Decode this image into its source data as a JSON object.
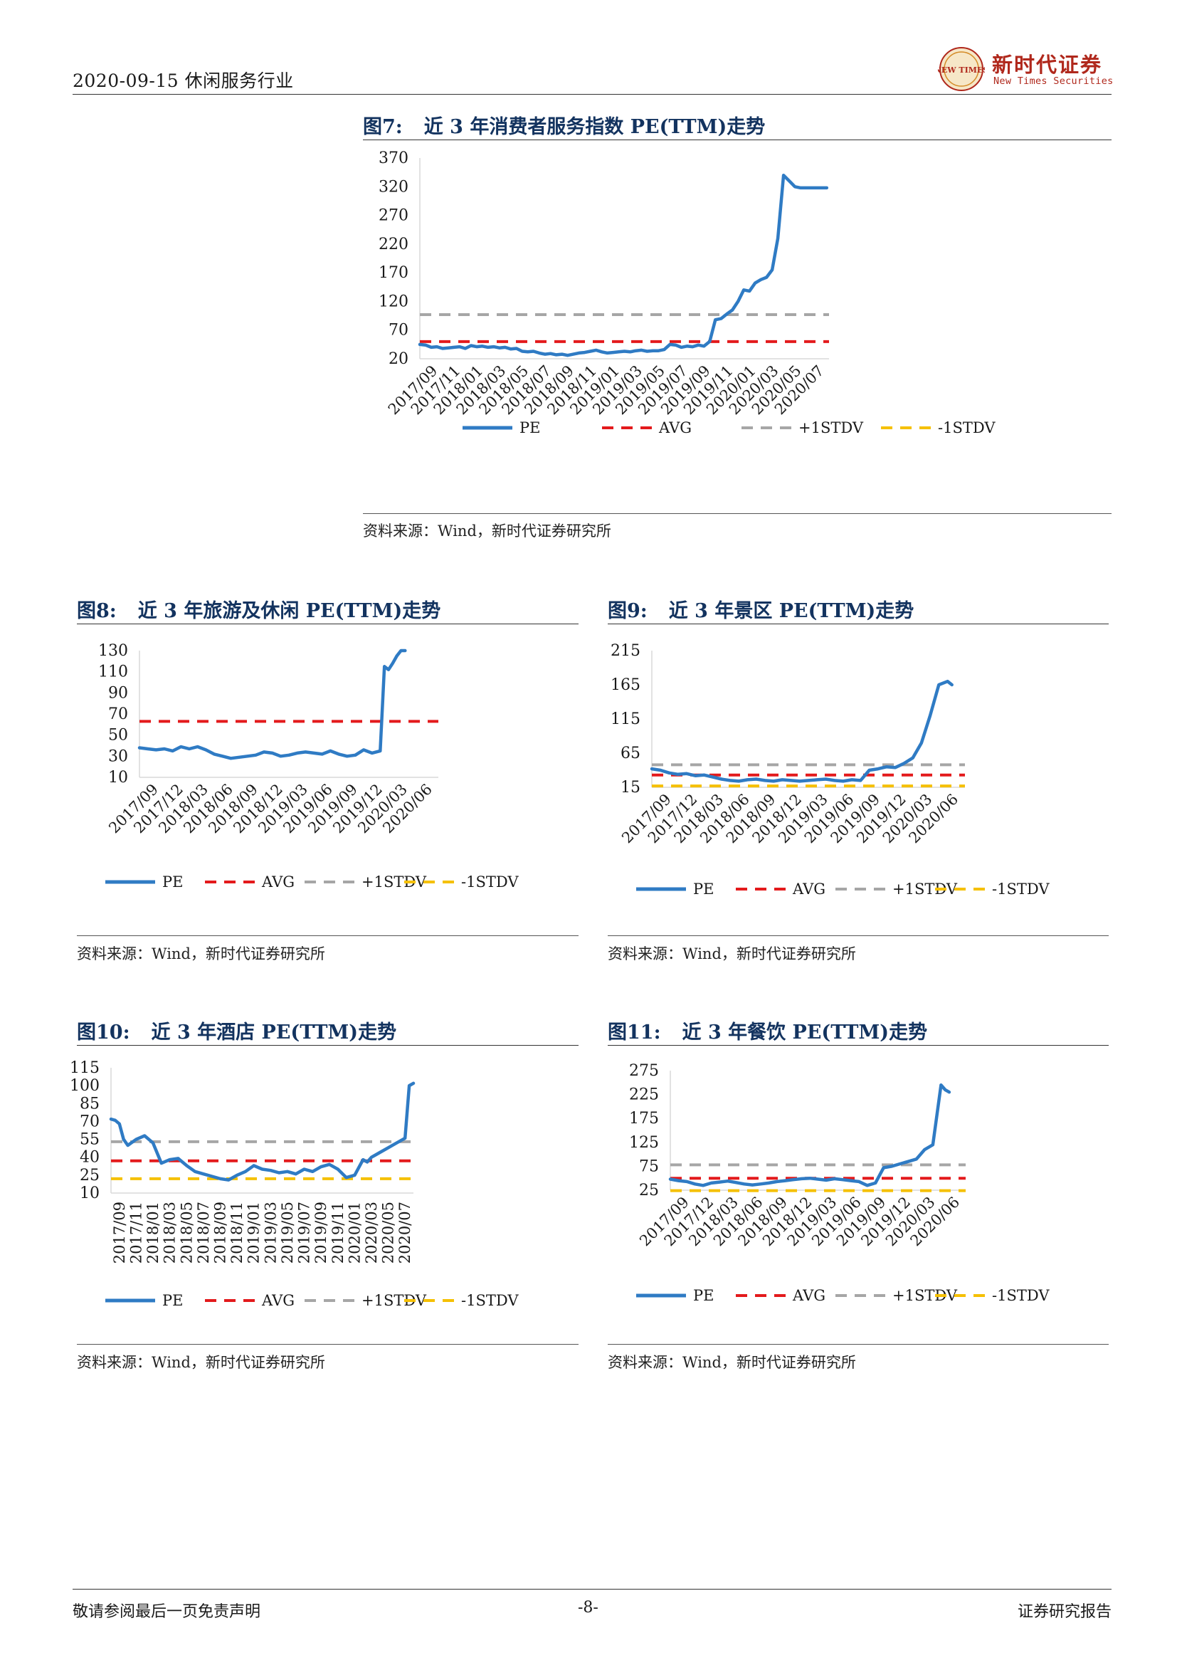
{
  "header": {
    "date_industry": "2020-09-15 休闲服务行业",
    "logo_cn": "新时代证券",
    "logo_en": "New Times Securities",
    "logo_seal_text": "NEW TIMES"
  },
  "footer": {
    "left": "敬请参阅最后一页免责声明",
    "page": "-8-",
    "right": "证券研究报告"
  },
  "colors": {
    "pe": "#2f7bc4",
    "avg": "#e31a1c",
    "plus1": "#a6a6a6",
    "minus1": "#f5c000",
    "title": "#13335f",
    "logo": "#b0281c"
  },
  "legend_labels": [
    "PE",
    "AVG",
    "+1STDV",
    "-1STDV"
  ],
  "figures": [
    {
      "num": "图7:",
      "title": "近 3 年消费者服务指数 PE(TTM)走势",
      "source": "资料来源：Wind，新时代证券研究所"
    },
    {
      "num": "图8:",
      "title": "近 3 年旅游及休闲 PE(TTM)走势",
      "source": "资料来源：Wind，新时代证券研究所"
    },
    {
      "num": "图9:",
      "title": "近 3 年景区 PE(TTM)走势",
      "source": "资料来源：Wind，新时代证券研究所"
    },
    {
      "num": "图10:",
      "title": "近 3 年酒店 PE(TTM)走势",
      "source": "资料来源：Wind，新时代证券研究所"
    },
    {
      "num": "图11:",
      "title": "近 3 年餐饮 PE(TTM)走势",
      "source": "资料来源：Wind，新时代证券研究所"
    }
  ],
  "chart_data": [
    {
      "type": "line",
      "title": "近 3 年消费者服务指数 PE(TTM)走势",
      "ylim": [
        20,
        370
      ],
      "yticks": [
        370,
        320,
        270,
        220,
        170,
        120,
        70,
        20
      ],
      "xticks": [
        "2017/09",
        "2017/11",
        "2018/01",
        "2018/03",
        "2018/05",
        "2018/07",
        "2018/09",
        "2018/11",
        "2019/01",
        "2019/03",
        "2019/05",
        "2019/07",
        "2019/09",
        "2019/11",
        "2020/01",
        "2020/03",
        "2020/05",
        "2020/07"
      ],
      "x_range": [
        0,
        36
      ],
      "lines": {
        "avg": 50,
        "plus1": 97,
        "minus1": null
      },
      "legend": [
        "PE",
        "AVG",
        "+1STDV",
        "-1STDV"
      ],
      "series": [
        {
          "name": "PE",
          "x": [
            0,
            0.5,
            1,
            1.5,
            2,
            2.5,
            3,
            3.5,
            4,
            4.5,
            5,
            5.5,
            6,
            6.5,
            7,
            7.5,
            8,
            8.5,
            9,
            9.5,
            10,
            10.5,
            11,
            11.5,
            12,
            12.5,
            13,
            13.5,
            14,
            14.5,
            15,
            15.5,
            16,
            16.5,
            17,
            17.5,
            18,
            18.5,
            19,
            19.5,
            20,
            20.5,
            21,
            21.5,
            22,
            22.5,
            23,
            23.5,
            24,
            24.5,
            25,
            25.5,
            26,
            26.5,
            27,
            27.5,
            28,
            28.5,
            29,
            29.5,
            30,
            30.5,
            31,
            31.5,
            32,
            32.5,
            33,
            33.5,
            34,
            34.5,
            35,
            35.3,
            35.5,
            35.8
          ],
          "values": [
            45,
            44,
            40,
            41,
            38,
            39,
            40,
            41,
            38,
            43,
            41,
            42,
            40,
            41,
            39,
            40,
            37,
            38,
            33,
            32,
            33,
            30,
            28,
            29,
            27,
            28,
            26,
            28,
            30,
            31,
            33,
            35,
            32,
            30,
            31,
            32,
            33,
            32,
            34,
            35,
            33,
            34,
            34,
            36,
            45,
            44,
            40,
            42,
            41,
            44,
            42,
            50,
            88,
            90,
            98,
            105,
            120,
            140,
            138,
            152,
            158,
            162,
            175,
            230,
            340,
            330,
            320,
            318,
            318,
            318,
            318,
            318,
            318,
            318
          ]
        }
      ]
    },
    {
      "type": "line",
      "title": "近 3 年旅游及休闲 PE(TTM)走势",
      "ylim": [
        10,
        130
      ],
      "yticks": [
        130,
        110,
        90,
        70,
        50,
        30,
        10
      ],
      "xticks": [
        "2017/09",
        "2017/12",
        "2018/03",
        "2018/06",
        "2018/09",
        "2018/12",
        "2019/03",
        "2019/06",
        "2019/09",
        "2019/12",
        "2020/03",
        "2020/06"
      ],
      "x_range": [
        0,
        36
      ],
      "lines": {
        "avg": 63,
        "plus1": null,
        "minus1": null
      },
      "legend": [
        "PE",
        "AVG",
        "+1STDV",
        "-1STDV"
      ],
      "series": [
        {
          "name": "PE",
          "x": [
            0,
            1,
            2,
            3,
            4,
            5,
            6,
            7,
            8,
            9,
            10,
            11,
            12,
            13,
            14,
            15,
            16,
            17,
            18,
            19,
            20,
            21,
            22,
            23,
            24,
            25,
            26,
            27,
            28,
            29,
            29.5,
            30,
            30.5,
            31,
            31.5,
            32
          ],
          "values": [
            38,
            37,
            36,
            37,
            35,
            39,
            37,
            39,
            36,
            32,
            30,
            28,
            29,
            30,
            31,
            34,
            33,
            30,
            31,
            33,
            34,
            33,
            32,
            35,
            32,
            30,
            31,
            36,
            33,
            35,
            115,
            112,
            118,
            125,
            130,
            130
          ]
        }
      ]
    },
    {
      "type": "line",
      "title": "近 3 年景区 PE(TTM)走势",
      "ylim": [
        15,
        215
      ],
      "yticks": [
        215,
        165,
        115,
        65,
        15
      ],
      "xticks": [
        "2017/09",
        "2017/12",
        "2018/03",
        "2018/06",
        "2018/09",
        "2018/12",
        "2019/03",
        "2019/06",
        "2019/09",
        "2019/12",
        "2020/03",
        "2020/06"
      ],
      "x_range": [
        0,
        36
      ],
      "lines": {
        "avg": 33,
        "plus1": 48,
        "minus1": 17
      },
      "legend": [
        "PE",
        "AVG",
        "+1STDV",
        "-1STDV"
      ],
      "series": [
        {
          "name": "PE",
          "x": [
            0,
            1,
            2,
            3,
            4,
            5,
            6,
            7,
            8,
            9,
            10,
            11,
            12,
            13,
            14,
            15,
            16,
            17,
            18,
            19,
            20,
            21,
            22,
            23,
            24,
            25,
            26,
            27,
            28,
            29,
            30,
            31,
            32,
            33,
            34,
            34.5
          ],
          "values": [
            42,
            40,
            36,
            34,
            35,
            32,
            33,
            30,
            27,
            25,
            24,
            26,
            27,
            25,
            24,
            26,
            25,
            24,
            25,
            26,
            27,
            25,
            24,
            26,
            25,
            40,
            42,
            45,
            44,
            50,
            58,
            80,
            120,
            165,
            170,
            165
          ]
        }
      ]
    },
    {
      "type": "line",
      "title": "近 3 年酒店 PE(TTM)走势",
      "ylim": [
        10,
        115
      ],
      "yticks": [
        115,
        100,
        85,
        70,
        55,
        40,
        25,
        10
      ],
      "xticks": [
        "2017/09",
        "2017/11",
        "2018/01",
        "2018/03",
        "2018/05",
        "2018/07",
        "2018/09",
        "2018/11",
        "2019/01",
        "2019/03",
        "2019/05",
        "2019/07",
        "2019/09",
        "2019/11",
        "2020/01",
        "2020/03",
        "2020/05",
        "2020/07"
      ],
      "x_range": [
        0,
        36
      ],
      "lines": {
        "avg": 37,
        "plus1": 53,
        "minus1": 22
      },
      "legend": [
        "PE",
        "AVG",
        "+1STDV",
        "-1STDV"
      ],
      "series": [
        {
          "name": "PE",
          "x": [
            0,
            0.5,
            1,
            1.5,
            2,
            3,
            4,
            5,
            6,
            7,
            8,
            9,
            10,
            11,
            12,
            13,
            14,
            15,
            16,
            17,
            18,
            19,
            20,
            21,
            22,
            23,
            24,
            25,
            26,
            27,
            28,
            29,
            30,
            30.5,
            31,
            31.5,
            32,
            33,
            34,
            35,
            35.5,
            36
          ],
          "values": [
            72,
            71,
            68,
            55,
            50,
            55,
            58,
            52,
            35,
            38,
            39,
            33,
            28,
            26,
            24,
            22,
            21,
            25,
            28,
            33,
            30,
            29,
            27,
            28,
            26,
            30,
            28,
            32,
            34,
            30,
            23,
            25,
            38,
            36,
            40,
            42,
            44,
            48,
            52,
            56,
            100,
            102
          ]
        }
      ]
    },
    {
      "type": "line",
      "title": "近 3 年餐饮 PE(TTM)走势",
      "ylim": [
        25,
        275
      ],
      "yticks": [
        275,
        225,
        175,
        125,
        75,
        25
      ],
      "xticks": [
        "2017/09",
        "2017/12",
        "2018/03",
        "2018/06",
        "2018/09",
        "2018/12",
        "2019/03",
        "2019/06",
        "2019/09",
        "2019/12",
        "2020/03",
        "2020/06"
      ],
      "x_range": [
        0,
        36
      ],
      "lines": {
        "avg": 50,
        "plus1": 78,
        "minus1": 24
      },
      "legend": [
        "PE",
        "AVG",
        "+1STDV",
        "-1STDV"
      ],
      "series": [
        {
          "name": "PE",
          "x": [
            0,
            1,
            2,
            3,
            4,
            5,
            6,
            7,
            8,
            9,
            10,
            11,
            12,
            13,
            14,
            15,
            16,
            17,
            18,
            19,
            20,
            21,
            22,
            23,
            24,
            25,
            26,
            27,
            28,
            29,
            30,
            31,
            32,
            33,
            33.5,
            34
          ],
          "values": [
            48,
            45,
            43,
            38,
            35,
            40,
            42,
            44,
            41,
            38,
            36,
            38,
            40,
            43,
            45,
            47,
            49,
            50,
            48,
            46,
            49,
            47,
            45,
            43,
            35,
            40,
            72,
            75,
            80,
            85,
            90,
            110,
            120,
            245,
            235,
            230
          ]
        }
      ]
    }
  ]
}
